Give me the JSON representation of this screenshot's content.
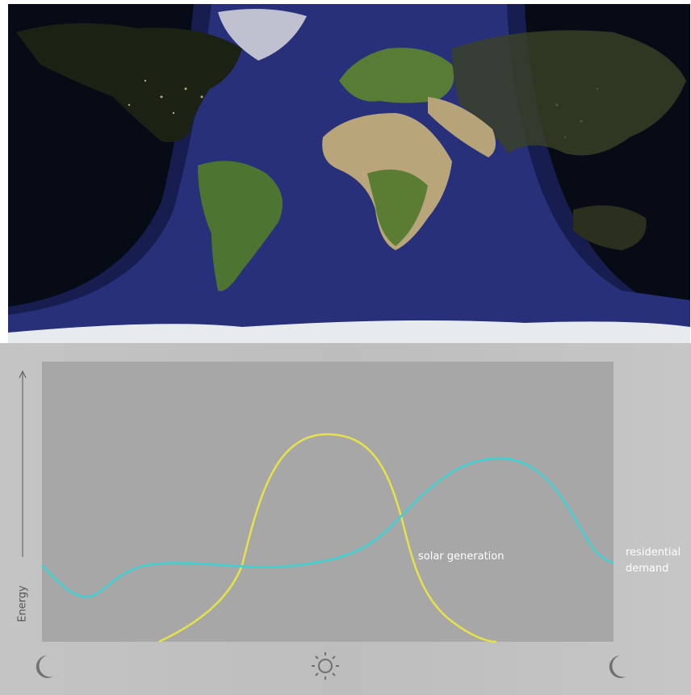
{
  "labels": {
    "y_axis": "Energy",
    "solar_curve": "solar generation",
    "demand_curve": [
      "residential",
      "demand"
    ]
  }
}
